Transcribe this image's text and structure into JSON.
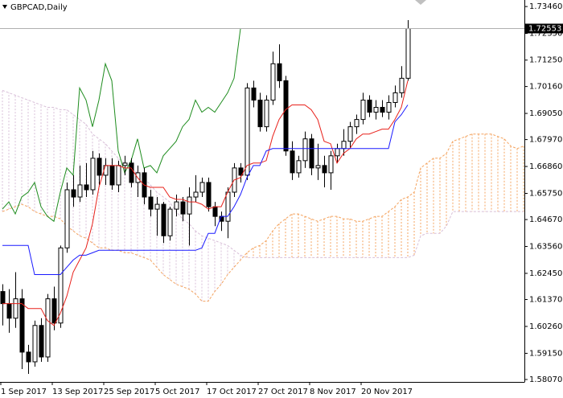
{
  "chart_data": {
    "type": "candlestick",
    "title": "GBPCAD,Daily",
    "categories": [
      "1 Sep 2017",
      null,
      null,
      null,
      null,
      null,
      null,
      null,
      "13 Sep 2017",
      null,
      null,
      null,
      null,
      null,
      null,
      null,
      "25 Sep 2017",
      null,
      null,
      null,
      null,
      null,
      null,
      null,
      "5 Oct 2017",
      null,
      null,
      null,
      null,
      null,
      null,
      null,
      "17 Oct 2017",
      null,
      null,
      null,
      null,
      null,
      null,
      null,
      "27 Oct 2017",
      null,
      null,
      null,
      null,
      null,
      null,
      null,
      "8 Nov 2017",
      null,
      null,
      null,
      null,
      null,
      null,
      null,
      "20 Nov 2017",
      null,
      null,
      null,
      null,
      null,
      null,
      null,
      null,
      null,
      null,
      null,
      null,
      null,
      null,
      null,
      null,
      null,
      null,
      null,
      null,
      null,
      null,
      null,
      null,
      null
    ],
    "open": [
      1.617,
      1.612,
      1.606,
      1.614,
      1.592,
      1.588,
      1.603,
      1.59,
      1.614,
      1.604,
      1.635,
      1.659,
      1.656,
      1.661,
      1.659,
      1.672,
      1.665,
      1.669,
      1.661,
      1.669,
      1.67,
      1.662,
      1.666,
      1.656,
      1.651,
      1.653,
      1.64,
      1.651,
      1.654,
      1.649,
      1.656,
      1.658,
      1.662,
      1.652,
      1.648,
      1.646,
      1.658,
      1.668,
      1.665,
      1.701,
      1.696,
      1.685,
      1.696,
      1.711,
      1.704,
      1.675,
      1.666,
      1.671,
      1.68,
      1.668,
      1.669,
      1.666,
      1.673,
      1.676,
      1.679,
      1.685,
      1.688,
      1.696,
      1.691,
      1.693,
      1.691,
      1.695,
      1.699,
      1.705,
      null,
      null,
      null,
      null,
      null,
      null,
      null,
      null,
      null,
      null,
      null,
      null,
      null,
      null,
      null,
      null,
      null,
      null
    ],
    "high": [
      1.62,
      1.618,
      1.625,
      1.618,
      1.595,
      1.605,
      1.606,
      1.616,
      1.619,
      1.636,
      1.662,
      1.665,
      1.669,
      1.67,
      1.675,
      1.674,
      1.672,
      1.672,
      1.671,
      1.673,
      1.672,
      1.669,
      1.668,
      1.659,
      1.656,
      1.654,
      1.652,
      1.657,
      1.656,
      1.66,
      1.665,
      1.664,
      1.664,
      1.654,
      1.65,
      1.66,
      1.67,
      1.67,
      1.703,
      1.704,
      1.699,
      1.698,
      1.716,
      1.719,
      1.706,
      1.679,
      1.673,
      1.683,
      1.682,
      1.678,
      1.673,
      1.675,
      1.678,
      1.684,
      1.687,
      1.69,
      1.699,
      1.698,
      1.696,
      1.696,
      1.698,
      1.702,
      1.71,
      1.729,
      null,
      null,
      null,
      null,
      null,
      null,
      null,
      null,
      null,
      null,
      null,
      null,
      null,
      null,
      null,
      null,
      null,
      null
    ],
    "low": [
      1.603,
      1.6,
      1.602,
      1.585,
      1.583,
      1.586,
      1.588,
      1.588,
      1.601,
      1.602,
      1.633,
      1.652,
      1.654,
      1.656,
      1.657,
      1.661,
      1.661,
      1.659,
      1.658,
      1.665,
      1.66,
      1.656,
      1.653,
      1.648,
      1.64,
      1.637,
      1.638,
      1.648,
      1.646,
      1.636,
      1.654,
      1.656,
      1.65,
      1.644,
      1.642,
      1.639,
      1.656,
      1.662,
      1.663,
      1.693,
      1.683,
      1.683,
      1.694,
      1.701,
      1.673,
      1.663,
      1.664,
      1.668,
      1.665,
      1.663,
      1.66,
      1.659,
      1.67,
      1.673,
      1.676,
      1.682,
      1.686,
      1.689,
      1.688,
      1.689,
      1.688,
      1.693,
      1.697,
      1.704,
      null,
      null,
      null,
      null,
      null,
      null,
      null,
      null,
      null,
      null,
      null,
      null,
      null,
      null,
      null,
      null,
      null,
      null
    ],
    "close": [
      1.612,
      1.606,
      1.614,
      1.592,
      1.588,
      1.603,
      1.59,
      1.614,
      1.604,
      1.635,
      1.659,
      1.656,
      1.661,
      1.659,
      1.672,
      1.665,
      1.669,
      1.661,
      1.669,
      1.67,
      1.662,
      1.666,
      1.656,
      1.651,
      1.653,
      1.64,
      1.651,
      1.654,
      1.649,
      1.656,
      1.658,
      1.662,
      1.652,
      1.648,
      1.646,
      1.658,
      1.668,
      1.665,
      1.701,
      1.696,
      1.685,
      1.696,
      1.711,
      1.704,
      1.675,
      1.666,
      1.671,
      1.68,
      1.668,
      1.669,
      1.666,
      1.673,
      1.676,
      1.679,
      1.685,
      1.688,
      1.696,
      1.691,
      1.693,
      1.691,
      1.695,
      1.699,
      1.705,
      1.7255,
      null,
      null,
      null,
      null,
      null,
      null,
      null,
      null,
      null,
      null,
      null,
      null,
      null,
      null,
      null,
      null,
      null,
      null
    ],
    "up_color": "#ffffff",
    "down_color": "#000000",
    "tenkan": {
      "color": "#e8201a",
      "values": [
        1.612,
        1.612,
        1.612,
        1.612,
        1.61,
        1.61,
        1.61,
        1.605,
        1.603,
        1.608,
        1.615,
        1.625,
        1.63,
        1.635,
        1.645,
        1.66,
        1.669,
        1.669,
        1.669,
        1.668,
        1.668,
        1.664,
        1.661,
        1.66,
        1.66,
        1.66,
        1.656,
        1.655,
        1.655,
        1.654,
        1.654,
        1.653,
        1.651,
        1.652,
        1.652,
        1.658,
        1.663,
        1.664,
        1.669,
        1.67,
        1.67,
        1.671,
        1.681,
        1.688,
        1.692,
        1.694,
        1.694,
        1.694,
        1.692,
        1.688,
        1.679,
        1.678,
        1.67,
        1.674,
        1.676,
        1.68,
        1.682,
        1.682,
        1.683,
        1.684,
        1.684,
        1.688,
        1.693,
        1.704,
        null,
        null,
        null,
        null,
        null,
        null,
        null,
        null,
        null,
        null,
        null,
        null,
        null,
        null,
        null,
        null,
        null,
        null
      ]
    },
    "kijun": {
      "color": "#1a1aff",
      "values": [
        1.636,
        1.636,
        1.636,
        1.636,
        1.636,
        1.624,
        1.624,
        1.624,
        1.624,
        1.624,
        1.627,
        1.63,
        1.632,
        1.632,
        1.633,
        1.634,
        1.634,
        1.634,
        1.634,
        1.634,
        1.634,
        1.634,
        1.634,
        1.634,
        1.634,
        1.634,
        1.634,
        1.634,
        1.634,
        1.634,
        1.634,
        1.635,
        1.641,
        1.641,
        1.648,
        1.648,
        1.652,
        1.657,
        1.664,
        1.669,
        1.669,
        1.675,
        1.676,
        1.676,
        1.676,
        1.676,
        1.676,
        1.676,
        1.676,
        1.676,
        1.676,
        1.676,
        1.676,
        1.676,
        1.676,
        1.676,
        1.676,
        1.676,
        1.676,
        1.676,
        1.676,
        1.687,
        1.69,
        1.694,
        null,
        null,
        null,
        null,
        null,
        null,
        null,
        null,
        null,
        null,
        null,
        null,
        null,
        null,
        null,
        null,
        null,
        null
      ]
    },
    "chikou": {
      "color": "#1e8c1e",
      "values": [
        1.651,
        1.654,
        1.649,
        1.656,
        1.658,
        1.662,
        1.652,
        1.648,
        1.646,
        1.658,
        1.668,
        1.665,
        1.701,
        1.696,
        1.685,
        1.696,
        1.711,
        1.704,
        1.675,
        1.666,
        1.671,
        1.68,
        1.668,
        1.669,
        1.666,
        1.673,
        1.676,
        1.679,
        1.685,
        1.688,
        1.696,
        1.691,
        1.693,
        1.691,
        1.695,
        1.699,
        1.705,
        1.7255,
        null,
        null,
        null,
        null,
        null,
        null,
        null,
        null,
        null,
        null,
        null,
        null,
        null,
        null,
        null,
        null,
        null,
        null,
        null,
        null,
        null,
        null,
        null,
        null,
        null,
        null,
        null,
        null,
        null,
        null,
        null,
        null,
        null,
        null,
        null,
        null,
        null,
        null,
        null,
        null,
        null,
        null,
        null,
        null
      ]
    },
    "senkou_a": {
      "color": "#f4a460",
      "values": [
        1.65,
        1.651,
        1.652,
        1.653,
        1.652,
        1.65,
        1.649,
        1.648,
        1.648,
        1.647,
        1.644,
        1.642,
        1.64,
        1.639,
        1.637,
        1.635,
        1.635,
        1.634,
        1.634,
        1.633,
        1.633,
        1.632,
        1.631,
        1.63,
        1.627,
        1.624,
        1.622,
        1.62,
        1.619,
        1.618,
        1.616,
        1.613,
        1.613,
        1.617,
        1.62,
        1.624,
        1.627,
        1.63,
        1.633,
        1.635,
        1.636,
        1.638,
        1.642,
        1.645,
        1.647,
        1.649,
        1.649,
        1.648,
        1.647,
        1.646,
        1.647,
        1.648,
        1.648,
        1.647,
        1.647,
        1.646,
        1.646,
        1.647,
        1.648,
        1.648,
        1.65,
        1.652,
        1.655,
        1.656,
        1.658,
        1.668,
        1.67,
        1.672,
        1.672,
        1.674,
        1.679,
        1.68,
        1.681,
        1.682,
        1.682,
        1.682,
        1.682,
        1.681,
        1.68,
        1.677,
        1.676,
        1.677
      ]
    },
    "senkou_b": {
      "color": "#d8bfd8",
      "values": [
        1.7,
        1.699,
        1.698,
        1.697,
        1.696,
        1.695,
        1.694,
        1.693,
        1.693,
        1.692,
        1.692,
        1.69,
        1.688,
        1.686,
        1.682,
        1.68,
        1.678,
        1.675,
        1.672,
        1.67,
        1.668,
        1.666,
        1.664,
        1.661,
        1.658,
        1.656,
        1.654,
        1.65,
        1.647,
        1.645,
        1.642,
        1.64,
        1.639,
        1.638,
        1.637,
        1.636,
        1.634,
        1.632,
        1.631,
        1.631,
        1.631,
        1.631,
        1.631,
        1.631,
        1.631,
        1.631,
        1.631,
        1.631,
        1.631,
        1.631,
        1.631,
        1.631,
        1.631,
        1.631,
        1.631,
        1.631,
        1.631,
        1.631,
        1.631,
        1.631,
        1.631,
        1.631,
        1.631,
        1.631,
        1.632,
        1.64,
        1.641,
        1.641,
        1.641,
        1.644,
        1.65,
        1.65,
        1.65,
        1.65,
        1.65,
        1.65,
        1.65,
        1.65,
        1.65,
        1.65,
        1.65,
        1.65
      ]
    },
    "current_price": 1.72553,
    "ylim": [
      1.5797,
      1.7373
    ],
    "yticks": [
      {
        "value": 1.7346,
        "label": "1.73460"
      },
      {
        "value": 1.7235,
        "label": "1.72350"
      },
      {
        "value": 1.7125,
        "label": "1.71250"
      },
      {
        "value": 1.7016,
        "label": "1.70160"
      },
      {
        "value": 1.6905,
        "label": "1.69050"
      },
      {
        "value": 1.6797,
        "label": "1.67970"
      },
      {
        "value": 1.6686,
        "label": "1.66860"
      },
      {
        "value": 1.6575,
        "label": "1.65750"
      },
      {
        "value": 1.6467,
        "label": "1.64670"
      },
      {
        "value": 1.6356,
        "label": "1.63560"
      },
      {
        "value": 1.6245,
        "label": "1.62450"
      },
      {
        "value": 1.6137,
        "label": "1.61370"
      },
      {
        "value": 1.6026,
        "label": "1.60260"
      },
      {
        "value": 1.5915,
        "label": "1.59150"
      },
      {
        "value": 1.5807,
        "label": "1.58070"
      }
    ],
    "grid": false
  }
}
